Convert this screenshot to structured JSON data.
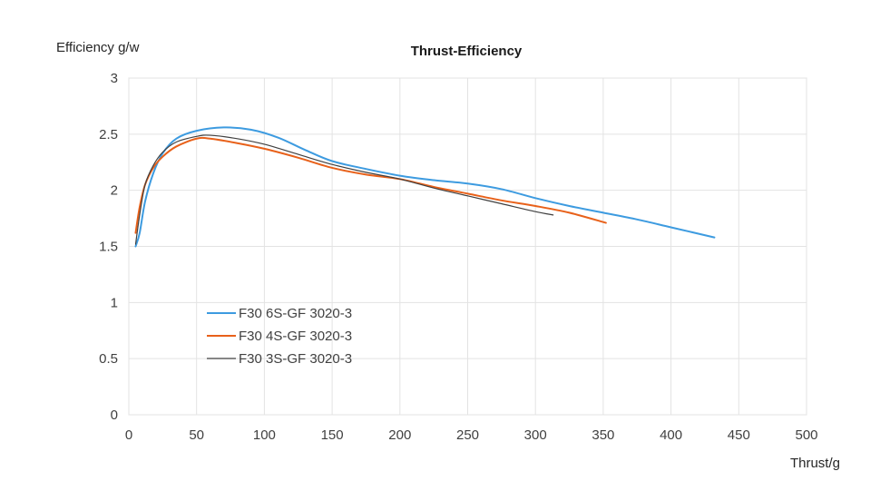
{
  "chart_data": {
    "type": "line",
    "title": "Thrust-Efficiency",
    "xlabel": "Thrust/g",
    "ylabel": "Efficiency g/w",
    "xlim": [
      0,
      500
    ],
    "ylim": [
      0,
      3
    ],
    "x_ticks": [
      0,
      50,
      100,
      150,
      200,
      250,
      300,
      350,
      400,
      450,
      500
    ],
    "y_ticks": [
      0,
      0.5,
      1,
      1.5,
      2,
      2.5,
      3
    ],
    "grid": true,
    "legend_position": "lower-left",
    "series": [
      {
        "name": "F30 6S-GF 3020-3",
        "color": "#3d9be0",
        "width": 2,
        "x": [
          5,
          8,
          12,
          18,
          25,
          35,
          50,
          70,
          90,
          110,
          130,
          150,
          175,
          200,
          225,
          250,
          275,
          300,
          325,
          350,
          375,
          400,
          432
        ],
        "y": [
          1.5,
          1.62,
          1.9,
          2.15,
          2.33,
          2.46,
          2.53,
          2.56,
          2.54,
          2.47,
          2.36,
          2.26,
          2.19,
          2.13,
          2.09,
          2.06,
          2.01,
          1.93,
          1.86,
          1.8,
          1.74,
          1.67,
          1.58
        ]
      },
      {
        "name": "F30 4S-GF 3020-3",
        "color": "#e8611a",
        "width": 2,
        "x": [
          5,
          8,
          12,
          18,
          25,
          35,
          50,
          60,
          80,
          100,
          125,
          150,
          175,
          200,
          225,
          250,
          275,
          300,
          325,
          352
        ],
        "y": [
          1.62,
          1.85,
          2.05,
          2.2,
          2.3,
          2.39,
          2.46,
          2.46,
          2.42,
          2.37,
          2.29,
          2.2,
          2.14,
          2.1,
          2.03,
          1.97,
          1.91,
          1.86,
          1.8,
          1.71
        ]
      },
      {
        "name": "F30 3S-GF 3020-3",
        "color": "#404040",
        "width": 1.2,
        "x": [
          5,
          8,
          12,
          18,
          25,
          35,
          50,
          60,
          80,
          100,
          125,
          150,
          175,
          200,
          225,
          250,
          275,
          300,
          313
        ],
        "y": [
          1.52,
          1.78,
          2.05,
          2.22,
          2.34,
          2.43,
          2.48,
          2.49,
          2.46,
          2.41,
          2.32,
          2.23,
          2.16,
          2.1,
          2.02,
          1.95,
          1.88,
          1.81,
          1.78
        ]
      }
    ]
  }
}
